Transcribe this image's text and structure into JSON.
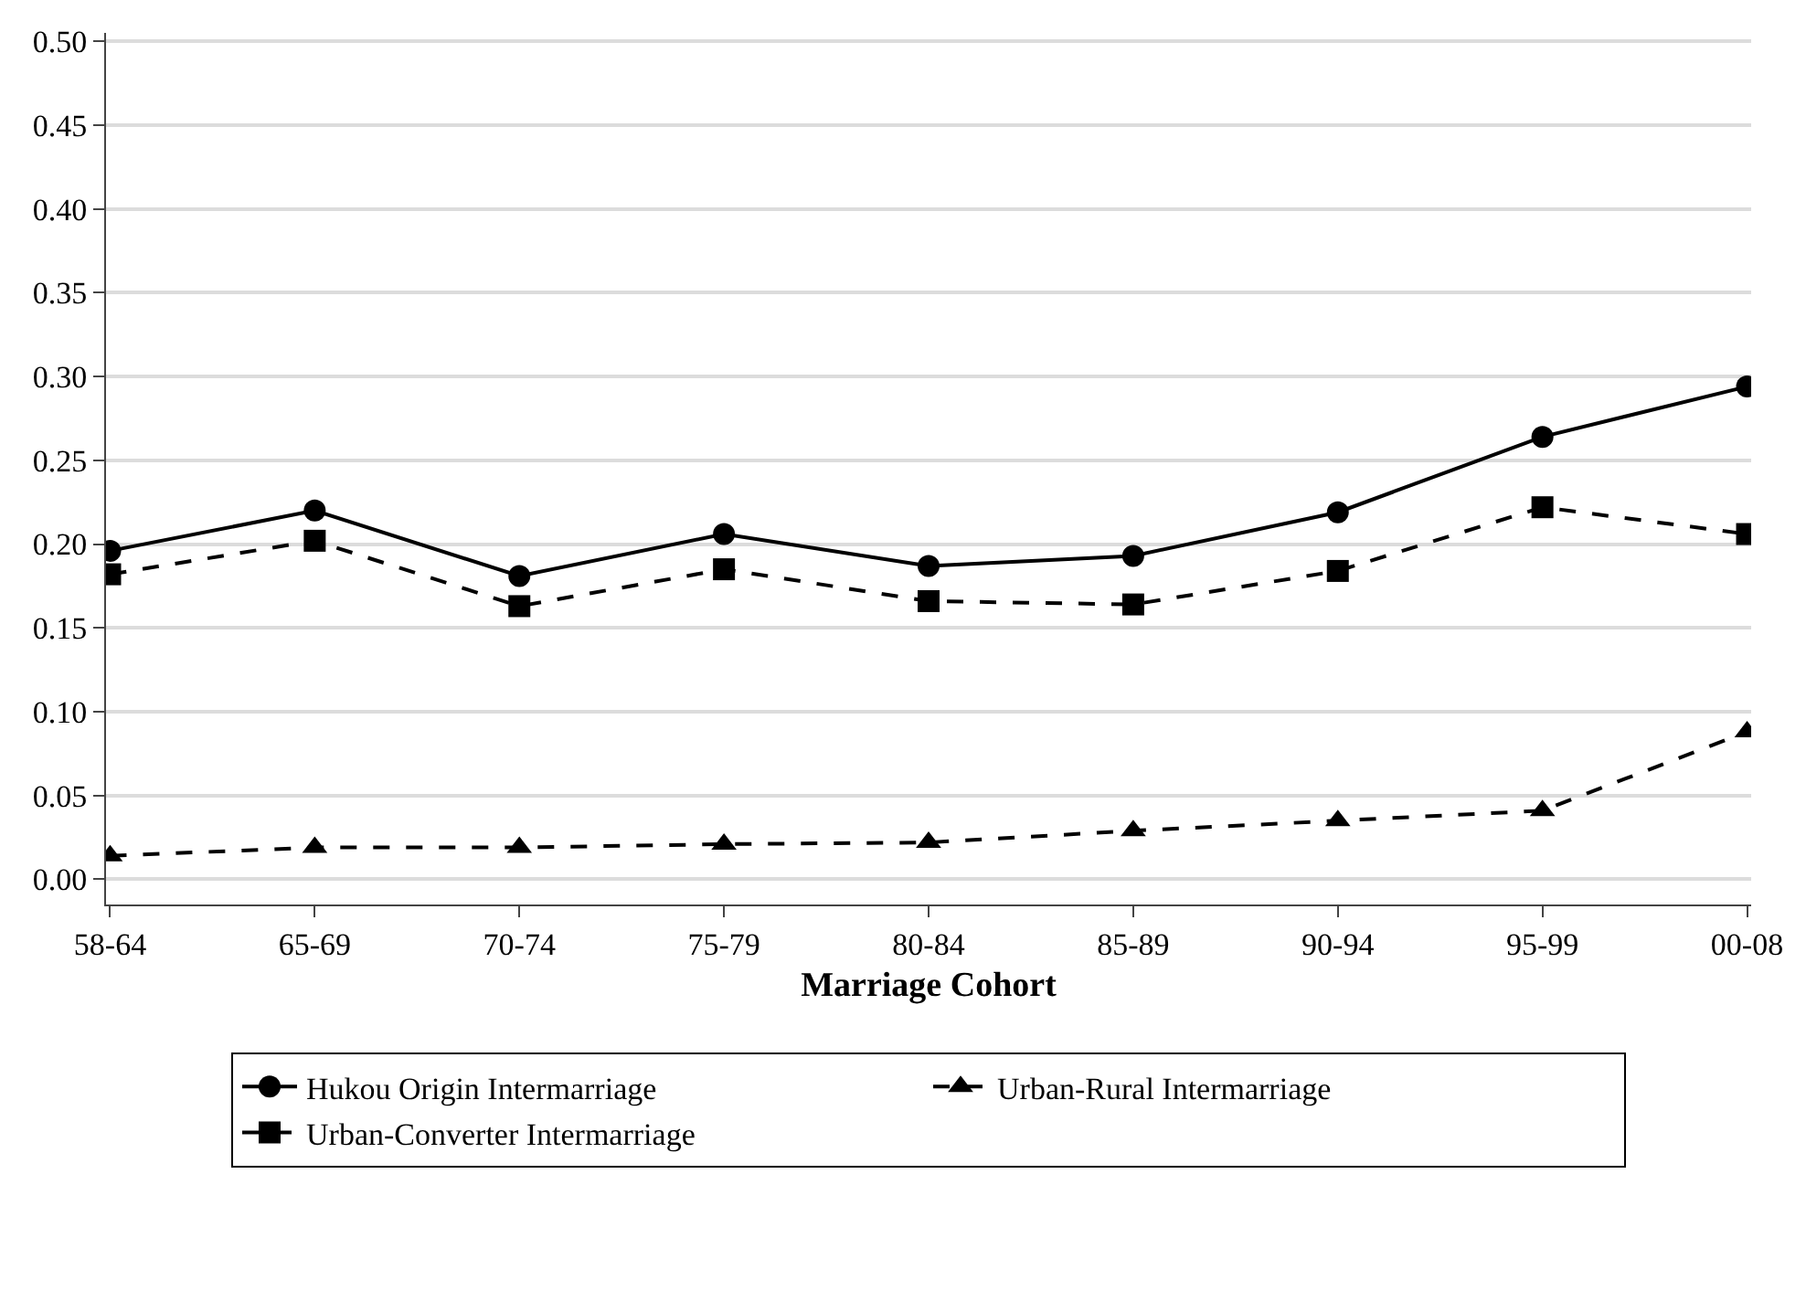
{
  "chart_data": {
    "type": "line",
    "xlabel": "Marriage Cohort",
    "categories": [
      "58-64",
      "65-69",
      "70-74",
      "75-79",
      "80-84",
      "85-89",
      "90-94",
      "95-99",
      "00-08"
    ],
    "series": [
      {
        "name": "Hukou Origin Intermarriage",
        "color": "#000000",
        "marker": "circle",
        "line_style": "solid",
        "values": [
          0.196,
          0.22,
          0.181,
          0.206,
          0.187,
          0.193,
          0.219,
          0.264,
          0.294
        ]
      },
      {
        "name": "Urban-Rural Intermarriage",
        "color": "#000000",
        "marker": "triangle",
        "line_style": "dashed",
        "values": [
          0.014,
          0.019,
          0.019,
          0.021,
          0.022,
          0.029,
          0.035,
          0.041,
          0.088
        ]
      },
      {
        "name": "Urban-Converter Intermarriage",
        "color": "#000000",
        "marker": "square",
        "line_style": "dashed",
        "values": [
          0.182,
          0.202,
          0.163,
          0.185,
          0.166,
          0.164,
          0.184,
          0.222,
          0.206
        ]
      }
    ],
    "ylim": [
      -0.015,
      0.505
    ],
    "yticks": [
      {
        "value": 0,
        "label": "0.00"
      },
      {
        "value": 0.05,
        "label": "0.05"
      },
      {
        "value": 0.1,
        "label": "0.10"
      },
      {
        "value": 0.15,
        "label": "0.15"
      },
      {
        "value": 0.2,
        "label": "0.20"
      },
      {
        "value": 0.25,
        "label": "0.25"
      },
      {
        "value": 0.3,
        "label": "0.30"
      },
      {
        "value": 0.35,
        "label": "0.35"
      },
      {
        "value": 0.4,
        "label": "0.40"
      },
      {
        "value": 0.45,
        "label": "0.45"
      },
      {
        "value": 0.5,
        "label": "0.50"
      }
    ],
    "grid": "y",
    "legend": "bottom"
  }
}
